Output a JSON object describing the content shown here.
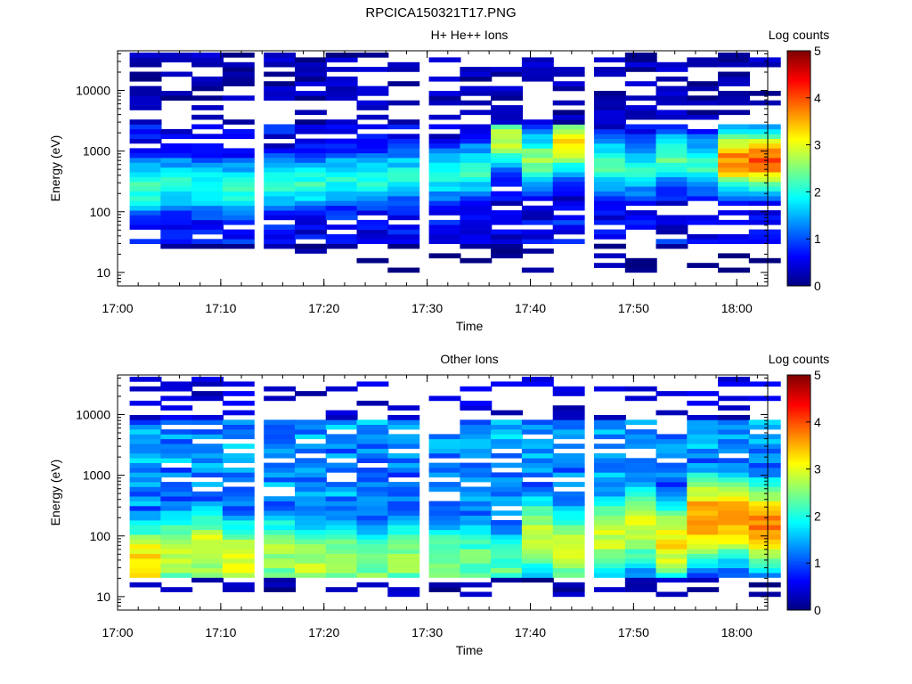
{
  "figure_title": "RPCICA150321T17.PNG",
  "colorbar_label": "Log counts",
  "colorbar_ticks": [
    "0",
    "1",
    "2",
    "3",
    "4",
    "5"
  ],
  "chart_data": [
    {
      "type": "heatmap",
      "title": "H+ He++ Ions",
      "xlabel": "Time",
      "ylabel": "Energy (eV)",
      "x_ticks": [
        "17:00",
        "17:10",
        "17:20",
        "17:30",
        "17:40",
        "17:50",
        "18:00"
      ],
      "y_ticks": [
        "10",
        "100",
        "1000",
        "10000"
      ],
      "xlim": [
        "17:00",
        "18:03"
      ],
      "ylim": [
        6,
        45000
      ],
      "y_scale": "log",
      "colorbar": {
        "label": "Log counts",
        "range": [
          0,
          5
        ],
        "colormap": "jet"
      },
      "time_bins": [
        "17:01",
        "17:04",
        "17:07",
        "17:10",
        "17:14",
        "17:17",
        "17:20",
        "17:23",
        "17:26",
        "17:30",
        "17:33",
        "17:36",
        "17:39",
        "17:42",
        "17:46",
        "17:49",
        "17:52",
        "17:55",
        "17:58",
        "18:01"
      ],
      "energy_profile_peak_eV": [
        250,
        300,
        250,
        250,
        300,
        300,
        350,
        350,
        400,
        400,
        500,
        1500,
        700,
        1300,
        600,
        500,
        800,
        600,
        700,
        700
      ],
      "energy_profile_peak_log_counts": [
        2.2,
        2.0,
        2.1,
        2.1,
        2.0,
        2.1,
        2.0,
        2.0,
        1.9,
        1.9,
        2.1,
        2.8,
        2.6,
        3.2,
        2.2,
        2.0,
        2.3,
        2.2,
        3.7,
        4.0
      ]
    },
    {
      "type": "heatmap",
      "title": "Other Ions",
      "xlabel": "Time",
      "ylabel": "Energy (eV)",
      "x_ticks": [
        "17:00",
        "17:10",
        "17:20",
        "17:30",
        "17:40",
        "17:50",
        "18:00"
      ],
      "y_ticks": [
        "10",
        "100",
        "1000",
        "10000"
      ],
      "xlim": [
        "17:00",
        "18:03"
      ],
      "ylim": [
        6,
        45000
      ],
      "y_scale": "log",
      "colorbar": {
        "label": "Log counts",
        "range": [
          0,
          5
        ],
        "colormap": "jet"
      },
      "time_bins": [
        "17:01",
        "17:04",
        "17:07",
        "17:10",
        "17:14",
        "17:17",
        "17:20",
        "17:23",
        "17:26",
        "17:30",
        "17:33",
        "17:36",
        "17:39",
        "17:42",
        "17:46",
        "17:49",
        "17:52",
        "17:55",
        "17:58",
        "18:01"
      ],
      "energy_profile_peak_eV": [
        35,
        50,
        60,
        40,
        50,
        35,
        40,
        30,
        40,
        40,
        40,
        30,
        100,
        60,
        100,
        150,
        80,
        200,
        200,
        150
      ],
      "energy_profile_peak_log_counts": [
        3.3,
        2.9,
        3.0,
        3.0,
        2.7,
        2.8,
        2.7,
        2.5,
        2.6,
        2.5,
        2.4,
        2.3,
        2.8,
        2.8,
        2.9,
        3.0,
        3.2,
        3.7,
        3.6,
        3.8
      ]
    }
  ]
}
